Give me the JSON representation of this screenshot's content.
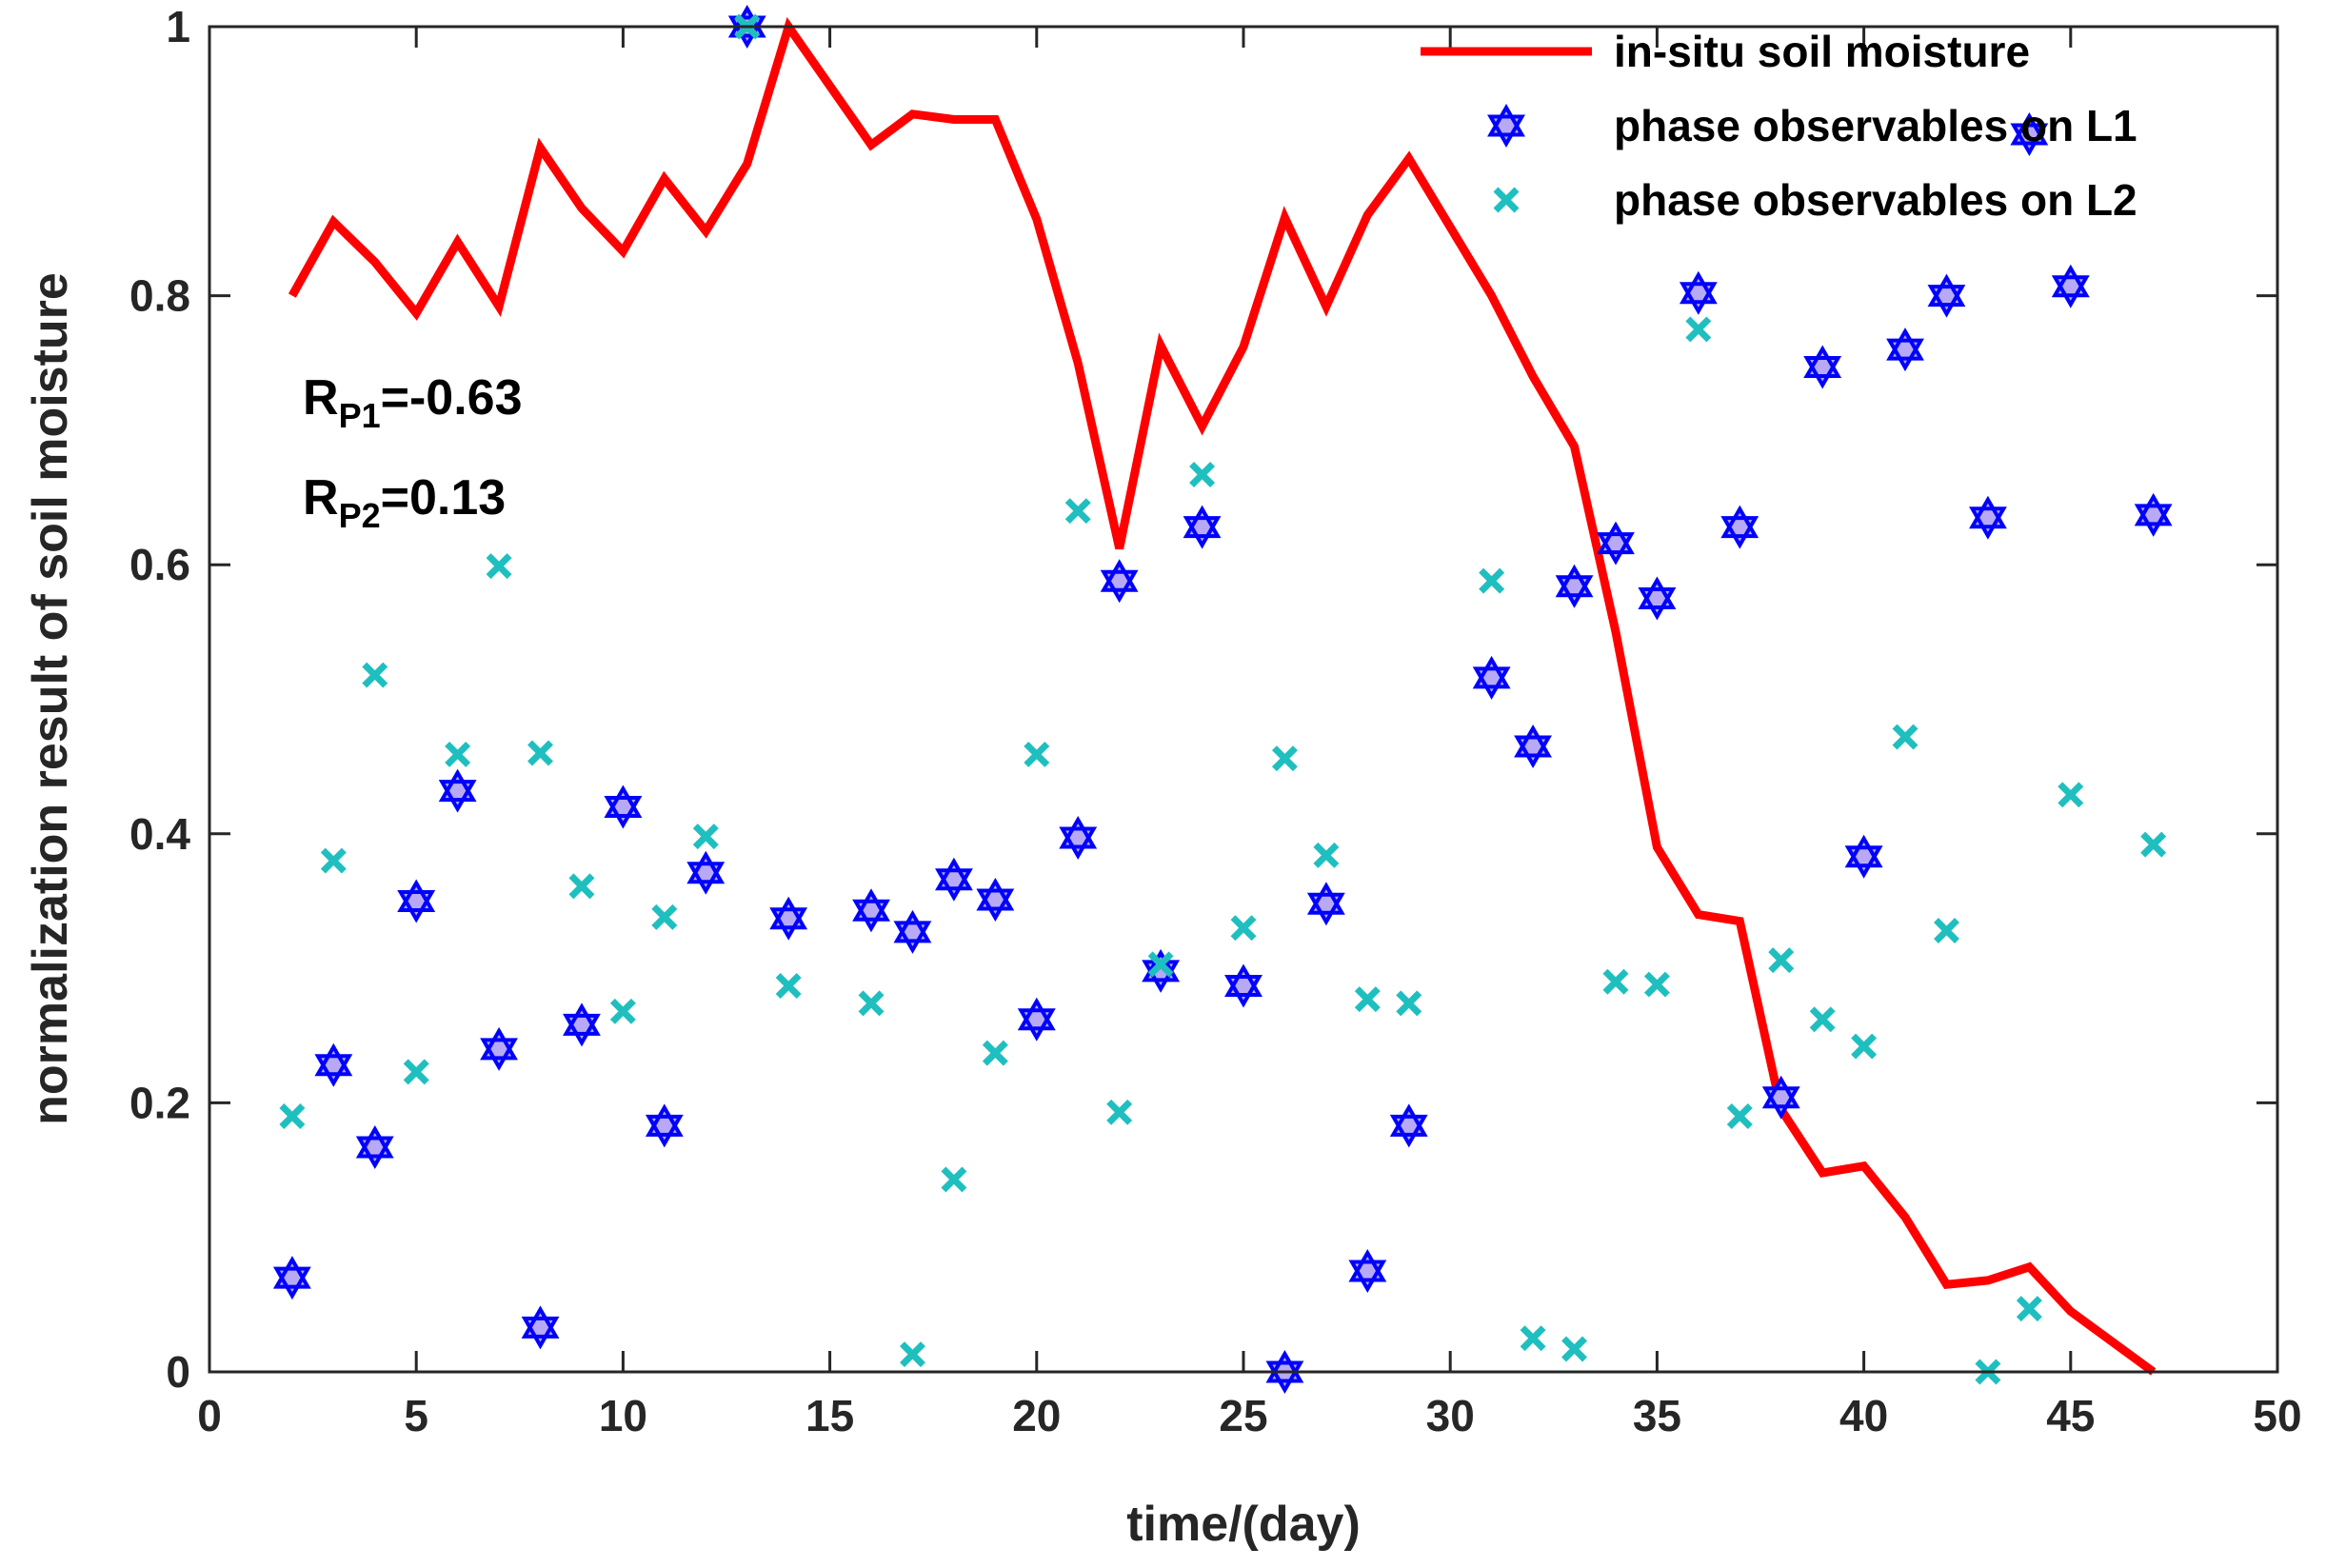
{
  "chart_data": {
    "type": "scatter",
    "title": "",
    "xlabel": "time/(day)",
    "ylabel": "normalization result of soil moisture",
    "xlim": [
      0,
      50
    ],
    "ylim": [
      0,
      1
    ],
    "xticks": [
      0,
      5,
      10,
      15,
      20,
      25,
      30,
      35,
      40,
      45,
      50
    ],
    "yticks": [
      0,
      0.2,
      0.4,
      0.6,
      0.8,
      1
    ],
    "ytick_labels": [
      "0",
      "0.2",
      "0.4",
      "0.6",
      "0.8",
      "1"
    ],
    "grid": false,
    "legend_position": "top-right",
    "x": [
      2,
      3,
      4,
      5,
      6,
      7,
      8,
      9,
      10,
      11,
      12,
      13,
      14,
      16,
      17,
      18,
      19,
      20,
      21,
      22,
      23,
      24,
      25,
      26,
      27,
      28,
      29,
      31,
      32,
      33,
      34,
      35,
      36,
      37,
      38,
      39,
      40,
      41,
      42,
      43,
      44,
      45,
      47
    ],
    "series": [
      {
        "name": "in-situ soil moisture",
        "kind": "line",
        "color": "#ff0000",
        "values": [
          0.8,
          0.855,
          0.825,
          0.787,
          0.84,
          0.792,
          0.91,
          0.865,
          0.833,
          0.887,
          0.848,
          0.898,
          1.0,
          0.912,
          0.935,
          0.931,
          0.931,
          0.857,
          0.75,
          0.612,
          0.763,
          0.703,
          0.762,
          0.858,
          0.792,
          0.86,
          0.902,
          0.8,
          0.74,
          0.688,
          0.55,
          0.39,
          0.34,
          0.335,
          0.195,
          0.148,
          0.153,
          0.115,
          0.065,
          0.068,
          0.078,
          0.045,
          0.0
        ]
      },
      {
        "name": "phase observables on L1",
        "kind": "hexagram",
        "color": "#0000ff",
        "fill": "#b8a9f5",
        "values": [
          0.07,
          0.228,
          0.167,
          0.35,
          0.432,
          0.24,
          0.033,
          0.258,
          0.42,
          0.183,
          0.371,
          1.0,
          0.337,
          0.343,
          0.327,
          0.366,
          0.351,
          0.262,
          0.397,
          0.588,
          0.298,
          0.628,
          0.287,
          0.0,
          0.348,
          0.075,
          0.183,
          0.516,
          0.465,
          0.584,
          0.616,
          0.575,
          0.802,
          0.628,
          0.204,
          0.747,
          0.383,
          0.76,
          0.8,
          0.635,
          0.92,
          0.807,
          0.637
        ]
      },
      {
        "name": "phase observables on L2",
        "kind": "x-marker",
        "color": "#1fbfbf",
        "values": [
          0.19,
          0.38,
          0.518,
          0.223,
          0.459,
          0.599,
          0.46,
          0.361,
          0.268,
          0.338,
          0.398,
          1.0,
          0.287,
          0.274,
          0.013,
          0.143,
          0.237,
          0.459,
          0.64,
          0.193,
          0.303,
          0.667,
          0.33,
          0.456,
          0.384,
          0.277,
          0.274,
          0.588,
          0.025,
          0.017,
          0.29,
          0.288,
          0.775,
          0.19,
          0.306,
          0.262,
          0.242,
          0.472,
          0.328,
          0.0,
          0.047,
          0.429,
          0.392
        ]
      }
    ],
    "annotations": [
      {
        "main": "R",
        "sub": "P1",
        "text": "=-0.63"
      },
      {
        "main": "R",
        "sub": "P2",
        "text": "=0.13"
      }
    ]
  }
}
